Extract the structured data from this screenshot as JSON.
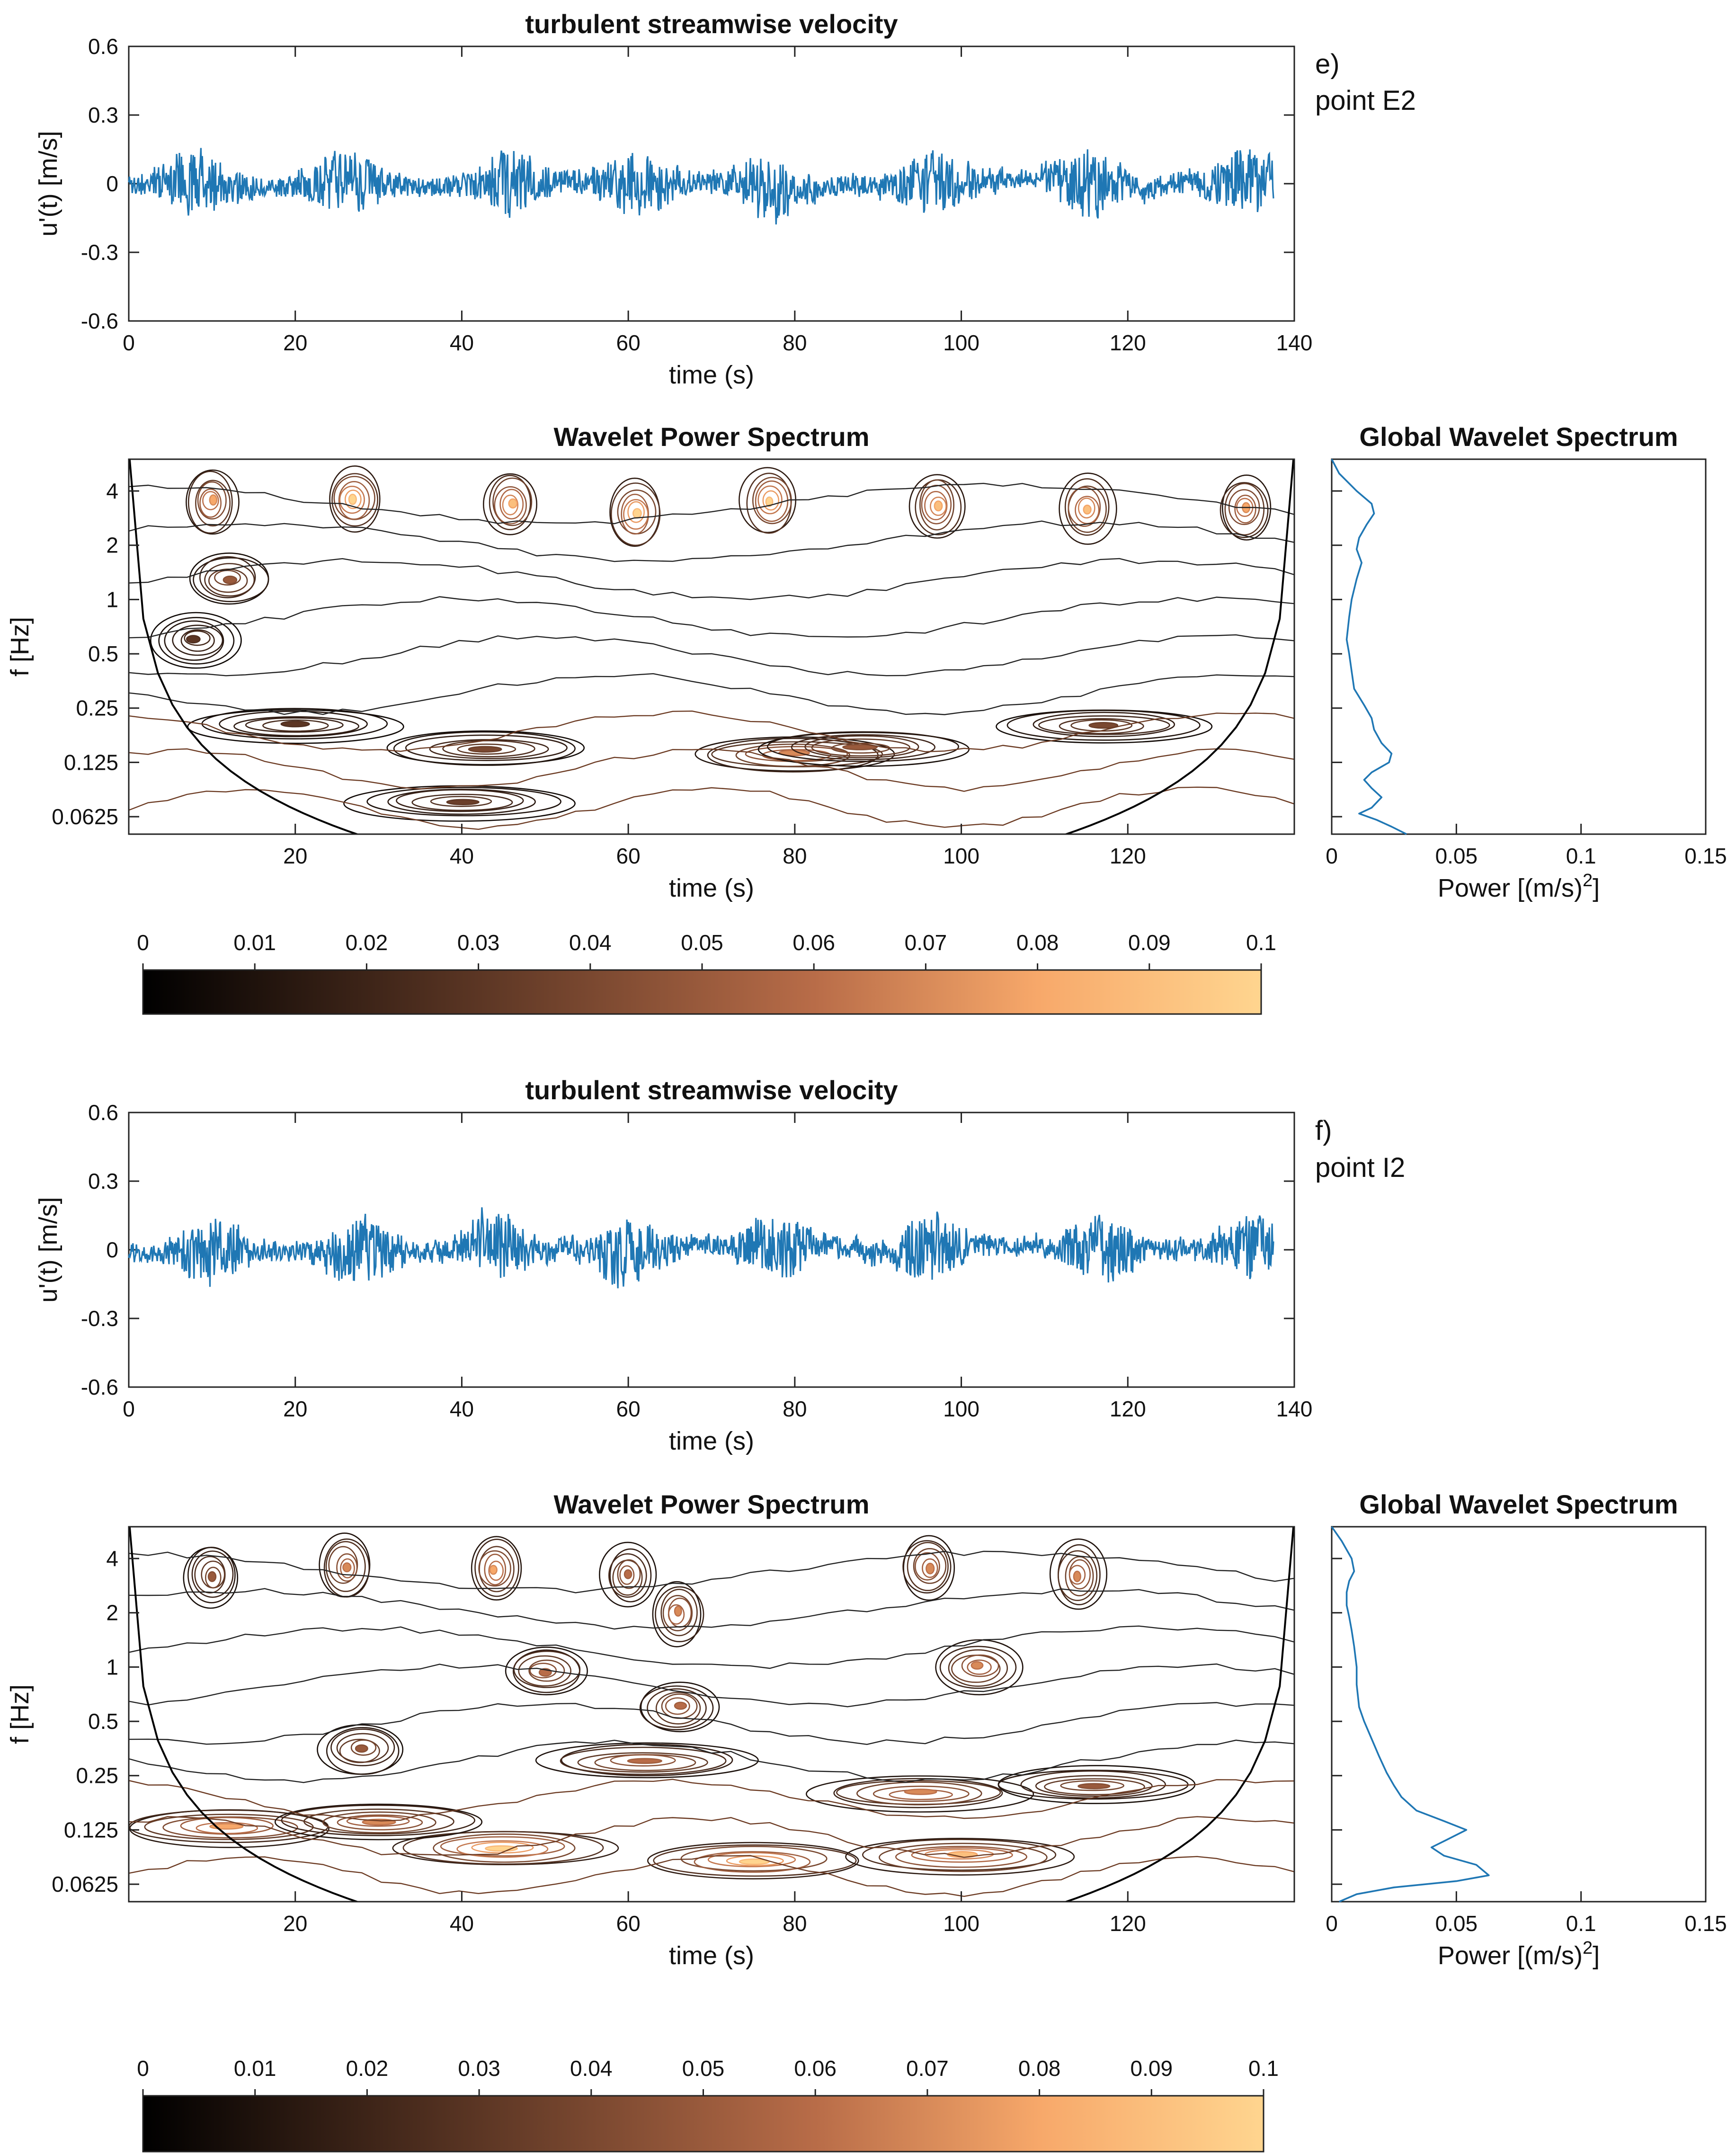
{
  "chart_data": [
    {
      "id": "e",
      "panel_letter": "e)",
      "panel_point": "point E2",
      "velocity": {
        "type": "line",
        "title": "turbulent streamwise velocity",
        "xlabel": "time (s)",
        "ylabel": "u'(t) [m/s]",
        "xlim": [
          0,
          140
        ],
        "ylim": [
          -0.6,
          0.6
        ],
        "xticks": [
          0,
          20,
          40,
          60,
          80,
          100,
          120,
          140
        ],
        "yticks": [
          0.6,
          0.3,
          0,
          -0.3,
          -0.6
        ],
        "ytick_labels": [
          "0.6",
          "0.3",
          "0",
          "-0.3",
          "-0.6"
        ],
        "duration": 137.5,
        "series_color": "#1f77b4",
        "burst_centers": [
          8,
          26,
          46,
          61,
          77,
          97,
          115,
          134
        ],
        "seed": 11
      },
      "wavelet": {
        "type": "heatmap",
        "title": "Wavelet Power Spectrum",
        "xlabel": "time (s)",
        "ylabel": "f [Hz]",
        "xlim": [
          0,
          140
        ],
        "ylim_hz": [
          0.05,
          6
        ],
        "xticks": [
          20,
          40,
          60,
          80,
          100,
          120
        ],
        "yticks": [
          4,
          2,
          1,
          0.5,
          0.25,
          0.125,
          0.0625
        ],
        "ytick_labels": [
          "4",
          "2",
          "1",
          "0.5",
          "0.25",
          "0.125",
          "0.0625"
        ],
        "hot_spots": [
          {
            "t": 10,
            "f": 3.5,
            "v": 0.08
          },
          {
            "t": 27,
            "f": 3.6,
            "v": 0.1
          },
          {
            "t": 46,
            "f": 3.4,
            "v": 0.09
          },
          {
            "t": 61,
            "f": 3.0,
            "v": 0.1
          },
          {
            "t": 77,
            "f": 3.5,
            "v": 0.1
          },
          {
            "t": 97,
            "f": 3.3,
            "v": 0.09
          },
          {
            "t": 115,
            "f": 3.2,
            "v": 0.09
          },
          {
            "t": 134,
            "f": 3.2,
            "v": 0.08
          },
          {
            "t": 12,
            "f": 1.3,
            "v": 0.05
          },
          {
            "t": 8,
            "f": 0.6,
            "v": 0.03
          },
          {
            "t": 80,
            "f": 0.14,
            "v": 0.07
          },
          {
            "t": 88,
            "f": 0.15,
            "v": 0.05
          },
          {
            "t": 117,
            "f": 0.2,
            "v": 0.04
          },
          {
            "t": 43,
            "f": 0.15,
            "v": 0.04
          },
          {
            "t": 40,
            "f": 0.075,
            "v": 0.035
          },
          {
            "t": 20,
            "f": 0.2,
            "v": 0.03
          }
        ]
      },
      "global": {
        "type": "line",
        "title": "Global Wavelet Spectrum",
        "xlabel": "Power [(m/s)",
        "xlabel_sup": "2",
        "xlabel_end": "]",
        "xlim": [
          0,
          0.15
        ],
        "xticks": [
          0,
          0.05,
          0.1,
          0.15
        ],
        "xtick_labels": [
          "0",
          "0.05",
          "0.1",
          "0.15"
        ],
        "f_hz": [
          6,
          5,
          4,
          3.4,
          3.0,
          2.6,
          2.2,
          1.9,
          1.6,
          1.3,
          1.0,
          0.8,
          0.6,
          0.5,
          0.4,
          0.32,
          0.26,
          0.22,
          0.19,
          0.16,
          0.14,
          0.125,
          0.11,
          0.1,
          0.09,
          0.08,
          0.07,
          0.065,
          0.06,
          0.055,
          0.05
        ],
        "power": [
          0.0,
          0.003,
          0.01,
          0.016,
          0.017,
          0.014,
          0.011,
          0.01,
          0.012,
          0.01,
          0.008,
          0.007,
          0.006,
          0.007,
          0.008,
          0.009,
          0.013,
          0.016,
          0.017,
          0.02,
          0.024,
          0.023,
          0.016,
          0.013,
          0.016,
          0.02,
          0.016,
          0.011,
          0.018,
          0.024,
          0.03
        ],
        "series_color": "#1f77b4"
      },
      "colorbar": {
        "ticks": [
          0,
          0.01,
          0.02,
          0.03,
          0.04,
          0.05,
          0.06,
          0.07,
          0.08,
          0.09,
          0.1
        ],
        "tick_labels": [
          "0",
          "0.01",
          "0.02",
          "0.03",
          "0.04",
          "0.05",
          "0.06",
          "0.07",
          "0.08",
          "0.09",
          "0.1"
        ],
        "colors": [
          "#000000",
          "#3d2418",
          "#7a4830",
          "#b86c48",
          "#f7a86a",
          "#ffd58f"
        ]
      }
    },
    {
      "id": "f",
      "panel_letter": "f)",
      "panel_point": "point I2",
      "velocity": {
        "type": "line",
        "title": "turbulent streamwise velocity",
        "xlabel": "time (s)",
        "ylabel": "u'(t) [m/s]",
        "xlim": [
          0,
          140
        ],
        "ylim": [
          -0.6,
          0.6
        ],
        "xticks": [
          0,
          20,
          40,
          60,
          80,
          100,
          120,
          140
        ],
        "yticks": [
          0.6,
          0.3,
          0,
          -0.3,
          -0.6
        ],
        "ytick_labels": [
          "0.6",
          "0.3",
          "0",
          "-0.3",
          "-0.6"
        ],
        "duration": 137.5,
        "series_color": "#1f77b4",
        "burst_centers": [
          10,
          28,
          44,
          60,
          78,
          96,
          117,
          135
        ],
        "seed": 29
      },
      "wavelet": {
        "type": "heatmap",
        "title": "Wavelet Power Spectrum",
        "xlabel": "time (s)",
        "ylabel": "f [Hz]",
        "xlim": [
          0,
          140
        ],
        "ylim_hz": [
          0.05,
          6
        ],
        "xticks": [
          20,
          40,
          60,
          80,
          100,
          120
        ],
        "yticks": [
          4,
          2,
          1,
          0.5,
          0.25,
          0.125,
          0.0625
        ],
        "ytick_labels": [
          "4",
          "2",
          "1",
          "0.5",
          "0.25",
          "0.125",
          "0.0625"
        ],
        "hot_spots": [
          {
            "t": 10,
            "f": 3.2,
            "v": 0.05
          },
          {
            "t": 26,
            "f": 3.6,
            "v": 0.07
          },
          {
            "t": 44,
            "f": 3.5,
            "v": 0.08
          },
          {
            "t": 60,
            "f": 3.2,
            "v": 0.06
          },
          {
            "t": 66,
            "f": 2.0,
            "v": 0.07
          },
          {
            "t": 96,
            "f": 3.6,
            "v": 0.07
          },
          {
            "t": 114,
            "f": 3.2,
            "v": 0.07
          },
          {
            "t": 102,
            "f": 1.0,
            "v": 0.07
          },
          {
            "t": 50,
            "f": 0.95,
            "v": 0.06
          },
          {
            "t": 66,
            "f": 0.6,
            "v": 0.06
          },
          {
            "t": 28,
            "f": 0.35,
            "v": 0.05
          },
          {
            "t": 62,
            "f": 0.3,
            "v": 0.06
          },
          {
            "t": 95,
            "f": 0.2,
            "v": 0.07
          },
          {
            "t": 12,
            "f": 0.13,
            "v": 0.08
          },
          {
            "t": 45,
            "f": 0.1,
            "v": 0.1
          },
          {
            "t": 75,
            "f": 0.085,
            "v": 0.1
          },
          {
            "t": 100,
            "f": 0.09,
            "v": 0.09
          },
          {
            "t": 116,
            "f": 0.22,
            "v": 0.05
          },
          {
            "t": 30,
            "f": 0.14,
            "v": 0.07
          }
        ]
      },
      "global": {
        "type": "line",
        "title": "Global Wavelet Spectrum",
        "xlabel": "Power [(m/s)",
        "xlabel_sup": "2",
        "xlabel_end": "]",
        "xlim": [
          0,
          0.15
        ],
        "xticks": [
          0,
          0.05,
          0.1,
          0.15
        ],
        "xtick_labels": [
          "0",
          "0.05",
          "0.1",
          "0.15"
        ],
        "f_hz": [
          6,
          5,
          4,
          3.4,
          3.0,
          2.6,
          2.2,
          1.9,
          1.6,
          1.3,
          1.0,
          0.8,
          0.6,
          0.5,
          0.4,
          0.32,
          0.26,
          0.22,
          0.19,
          0.16,
          0.14,
          0.125,
          0.11,
          0.1,
          0.09,
          0.08,
          0.07,
          0.065,
          0.06,
          0.055,
          0.05
        ],
        "power": [
          0.0,
          0.004,
          0.008,
          0.009,
          0.007,
          0.006,
          0.006,
          0.007,
          0.008,
          0.009,
          0.01,
          0.01,
          0.011,
          0.013,
          0.016,
          0.019,
          0.022,
          0.025,
          0.028,
          0.034,
          0.045,
          0.054,
          0.046,
          0.04,
          0.045,
          0.058,
          0.063,
          0.05,
          0.025,
          0.01,
          0.003
        ],
        "series_color": "#1f77b4"
      },
      "colorbar": {
        "ticks": [
          0,
          0.01,
          0.02,
          0.03,
          0.04,
          0.05,
          0.06,
          0.07,
          0.08,
          0.09,
          0.1
        ],
        "tick_labels": [
          "0",
          "0.01",
          "0.02",
          "0.03",
          "0.04",
          "0.05",
          "0.06",
          "0.07",
          "0.08",
          "0.09",
          "0.1"
        ],
        "colors": [
          "#000000",
          "#3d2418",
          "#7a4830",
          "#b86c48",
          "#f7a86a",
          "#ffd58f"
        ]
      }
    }
  ]
}
